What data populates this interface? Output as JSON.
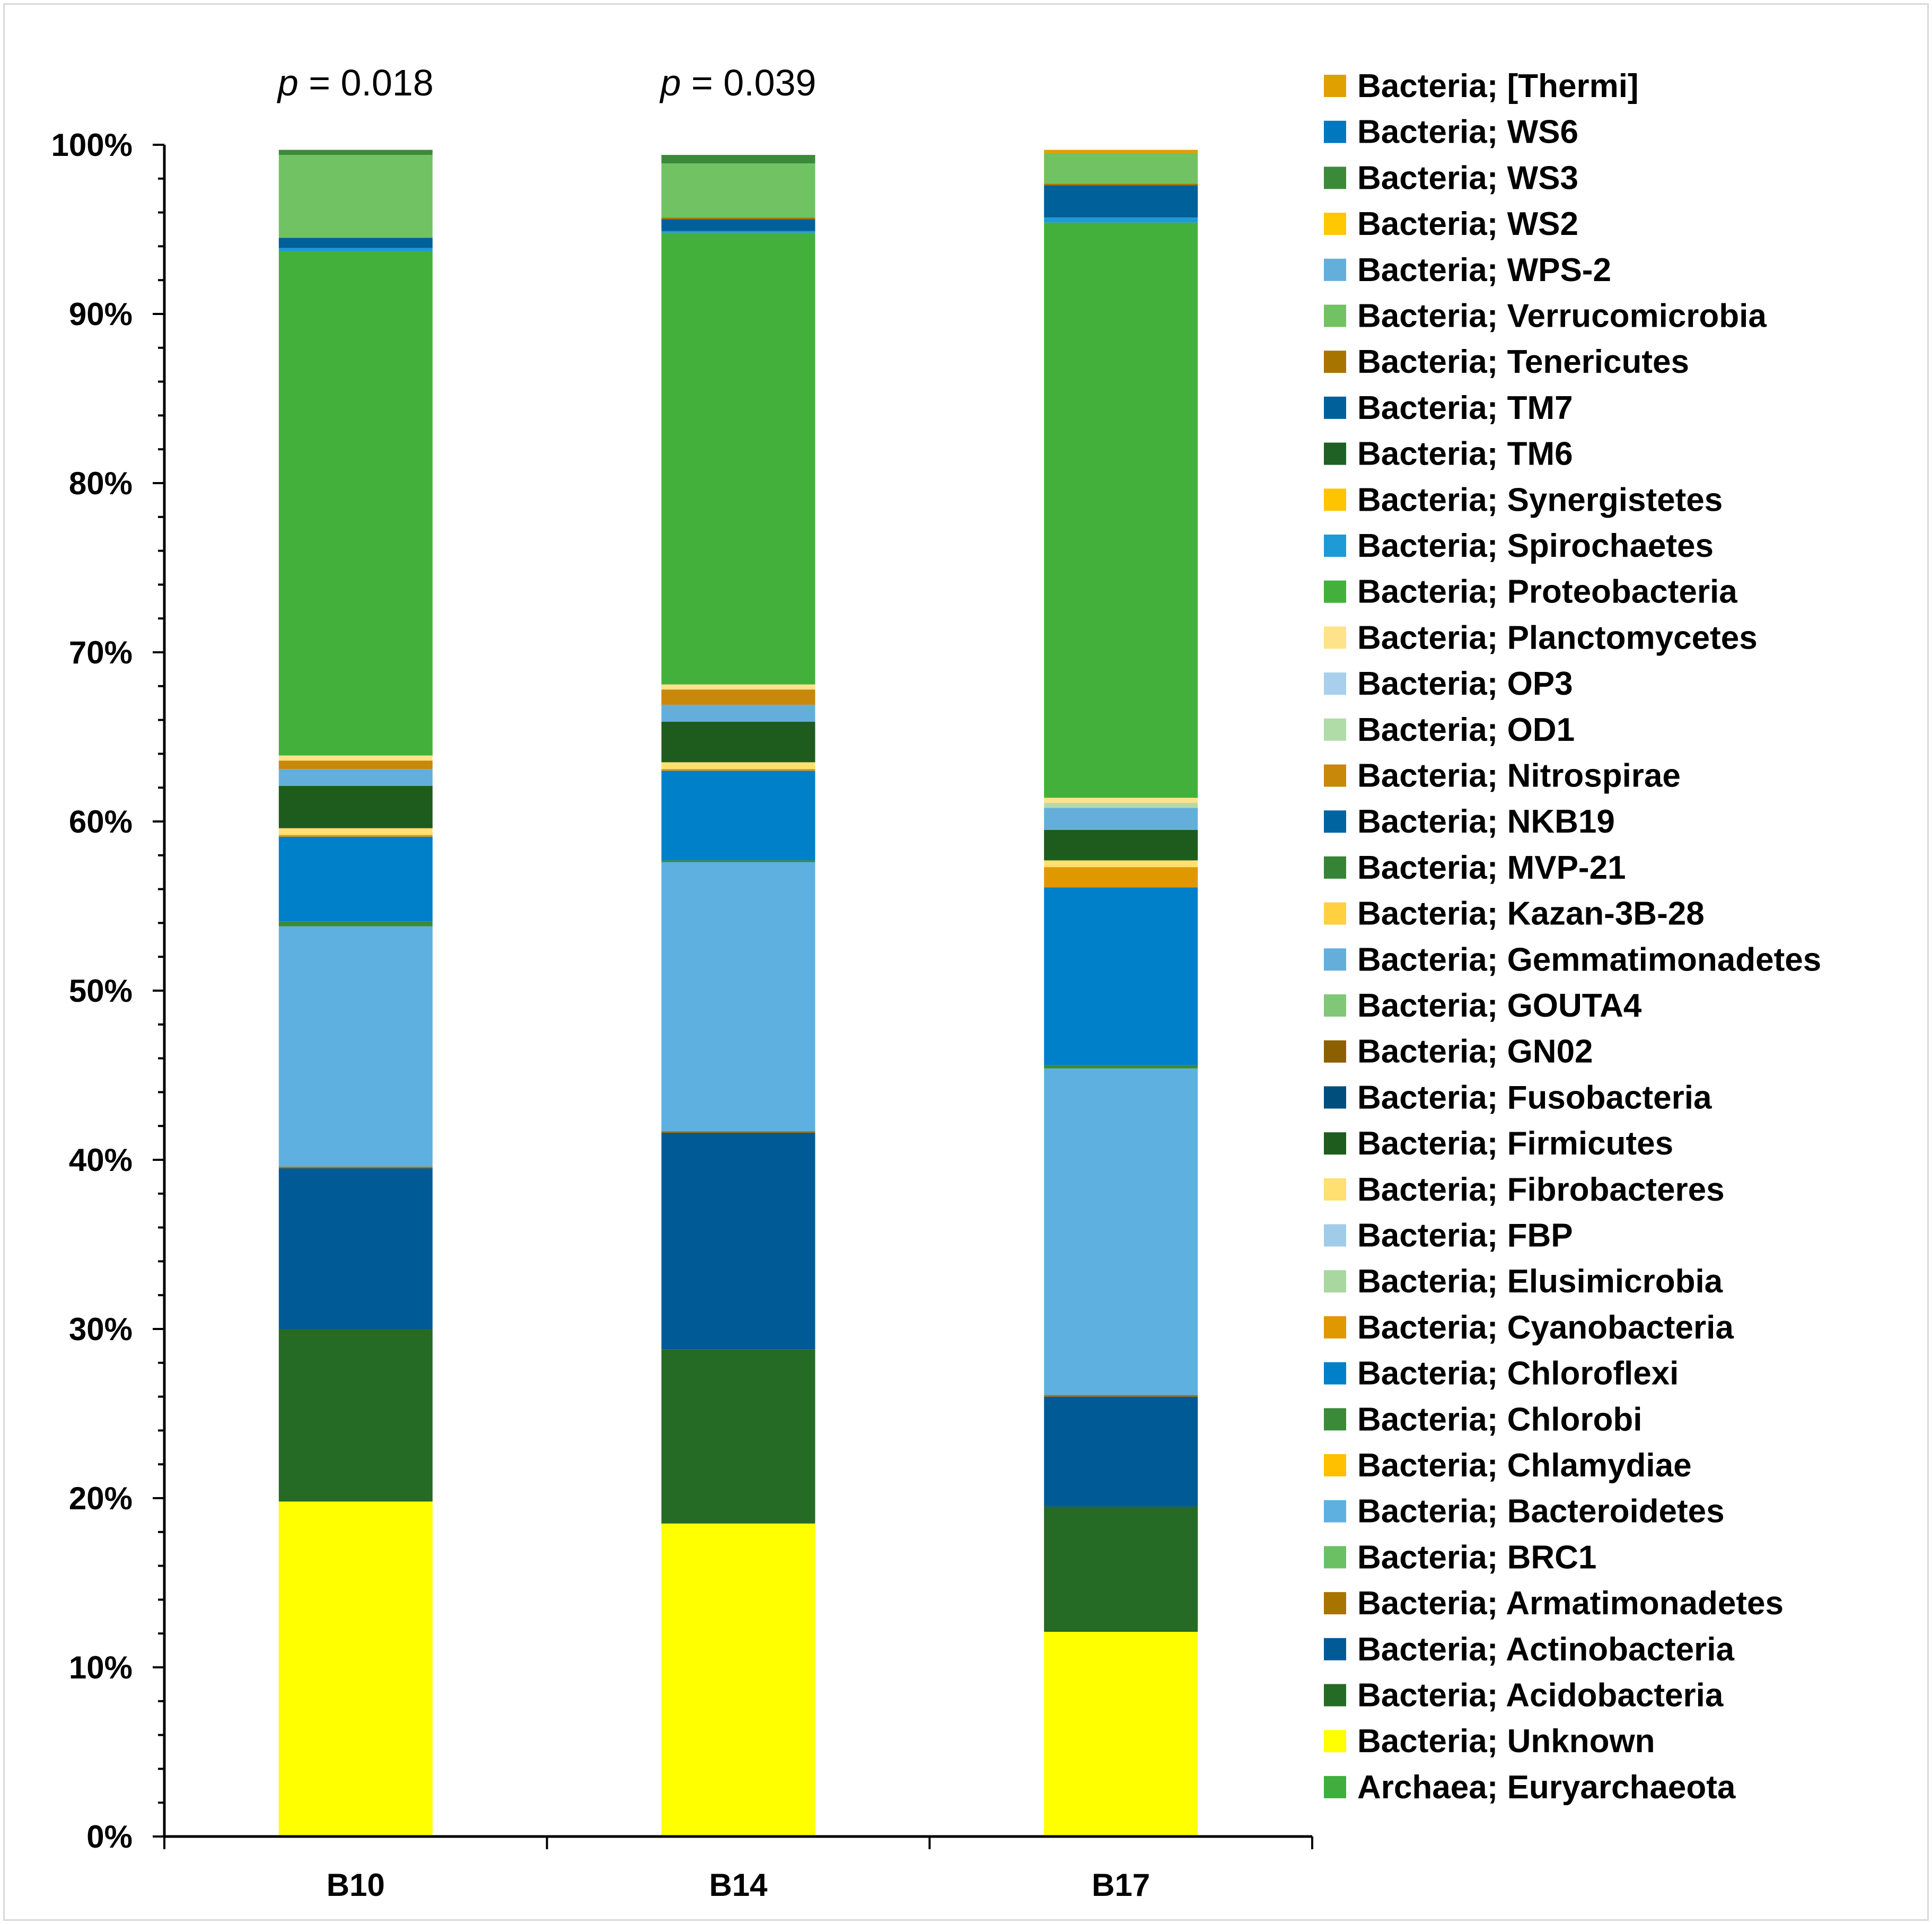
{
  "chart_data": {
    "type": "bar",
    "stacked": true,
    "categories": [
      "B10",
      "B14",
      "B17"
    ],
    "ylim": [
      0,
      100
    ],
    "yticks": [
      "0%",
      "10%",
      "20%",
      "30%",
      "40%",
      "50%",
      "60%",
      "70%",
      "80%",
      "90%",
      "100%"
    ],
    "annotations": [
      {
        "category": "B10",
        "prefix": "p",
        "text": " = 0.018"
      },
      {
        "category": "B14",
        "prefix": "p",
        "text": " = 0.039"
      }
    ],
    "legend_position": "right",
    "series": [
      {
        "name": "Archaea; Euryarchaeota",
        "color": "#3fae3f",
        "values": [
          0.0,
          0.0,
          0.0
        ]
      },
      {
        "name": "Bacteria; Unknown",
        "color": "#ffff00",
        "values": [
          19.8,
          18.5,
          12.1
        ]
      },
      {
        "name": "Bacteria; Acidobacteria",
        "color": "#256a25",
        "values": [
          10.2,
          10.3,
          7.4
        ]
      },
      {
        "name": "Bacteria; Actinobacteria",
        "color": "#005a96",
        "values": [
          9.5,
          12.8,
          6.5
        ]
      },
      {
        "name": "Bacteria; Armatimonadetes",
        "color": "#a87400",
        "values": [
          0.1,
          0.1,
          0.1
        ]
      },
      {
        "name": "Bacteria; BRC1",
        "color": "#6cc064",
        "values": [
          0.0,
          0.0,
          0.0
        ]
      },
      {
        "name": "Bacteria; Bacteroidetes",
        "color": "#5eb0e0",
        "values": [
          14.2,
          15.9,
          19.3
        ]
      },
      {
        "name": "Bacteria; Chlamydiae",
        "color": "#ffc000",
        "values": [
          0.0,
          0.0,
          0.0
        ]
      },
      {
        "name": "Bacteria; Chlorobi",
        "color": "#3a8a3a",
        "values": [
          0.3,
          0.1,
          0.2
        ]
      },
      {
        "name": "Bacteria; Chloroflexi",
        "color": "#0080c8",
        "values": [
          5.0,
          5.3,
          10.5
        ]
      },
      {
        "name": "Bacteria; Cyanobacteria",
        "color": "#e09800",
        "values": [
          0.1,
          0.1,
          1.2
        ]
      },
      {
        "name": "Bacteria; Elusimicrobia",
        "color": "#a8d8a0",
        "values": [
          0.0,
          0.0,
          0.0
        ]
      },
      {
        "name": "Bacteria; FBP",
        "color": "#a0cce8",
        "values": [
          0.0,
          0.0,
          0.0
        ]
      },
      {
        "name": "Bacteria; Fibrobacteres",
        "color": "#ffe070",
        "values": [
          0.4,
          0.4,
          0.4
        ]
      },
      {
        "name": "Bacteria; Firmicutes",
        "color": "#1e5c1e",
        "values": [
          2.5,
          2.4,
          1.8
        ]
      },
      {
        "name": "Bacteria; Fusobacteria",
        "color": "#004e7c",
        "values": [
          0.0,
          0.0,
          0.0
        ]
      },
      {
        "name": "Bacteria; GN02",
        "color": "#8c6000",
        "values": [
          0.0,
          0.0,
          0.0
        ]
      },
      {
        "name": "Bacteria; GOUTA4",
        "color": "#80c878",
        "values": [
          0.0,
          0.0,
          0.0
        ]
      },
      {
        "name": "Bacteria; Gemmatimonadetes",
        "color": "#64aedc",
        "values": [
          1.0,
          1.0,
          1.3
        ]
      },
      {
        "name": "Bacteria; Kazan-3B-28",
        "color": "#ffd040",
        "values": [
          0.0,
          0.0,
          0.0
        ]
      },
      {
        "name": "Bacteria; MVP-21",
        "color": "#358435",
        "values": [
          0.0,
          0.0,
          0.0
        ]
      },
      {
        "name": "Bacteria; NKB19",
        "color": "#0064a0",
        "values": [
          0.0,
          0.0,
          0.0
        ]
      },
      {
        "name": "Bacteria; Nitrospirae",
        "color": "#c8880a",
        "values": [
          0.5,
          0.9,
          0.0
        ]
      },
      {
        "name": "Bacteria; OD1",
        "color": "#b0dca8",
        "values": [
          0.0,
          0.0,
          0.3
        ]
      },
      {
        "name": "Bacteria; OP3",
        "color": "#a8d0ec",
        "values": [
          0.0,
          0.0,
          0.0
        ]
      },
      {
        "name": "Bacteria; Planctomycetes",
        "color": "#ffe38a",
        "values": [
          0.3,
          0.3,
          0.3
        ]
      },
      {
        "name": "Bacteria; Proteobacteria",
        "color": "#44b03c",
        "values": [
          29.8,
          26.7,
          34.0
        ]
      },
      {
        "name": "Bacteria; Spirochaetes",
        "color": "#1e9ad6",
        "values": [
          0.2,
          0.1,
          0.3
        ]
      },
      {
        "name": "Bacteria; Synergistetes",
        "color": "#ffc400",
        "values": [
          0.0,
          0.0,
          0.0
        ]
      },
      {
        "name": "Bacteria; TM6",
        "color": "#1f6024",
        "values": [
          0.0,
          0.0,
          0.0
        ]
      },
      {
        "name": "Bacteria; TM7",
        "color": "#00609a",
        "values": [
          0.6,
          0.7,
          1.9
        ]
      },
      {
        "name": "Bacteria; Tenericutes",
        "color": "#a87400",
        "values": [
          0.0,
          0.1,
          0.1
        ]
      },
      {
        "name": "Bacteria; Verrucomicrobia",
        "color": "#70c262",
        "values": [
          4.9,
          3.2,
          1.8
        ]
      },
      {
        "name": "Bacteria; WPS-2",
        "color": "#64aedc",
        "values": [
          0.0,
          0.0,
          0.0
        ]
      },
      {
        "name": "Bacteria; WS2",
        "color": "#ffc800",
        "values": [
          0.0,
          0.0,
          0.0
        ]
      },
      {
        "name": "Bacteria; WS3",
        "color": "#3a8a3a",
        "values": [
          0.3,
          0.5,
          0.0
        ]
      },
      {
        "name": "Bacteria; WS6",
        "color": "#0078c0",
        "values": [
          0.0,
          0.0,
          0.0
        ]
      },
      {
        "name": "Bacteria; [Thermi]",
        "color": "#e0a000",
        "values": [
          0.0,
          0.0,
          0.2
        ]
      }
    ]
  }
}
